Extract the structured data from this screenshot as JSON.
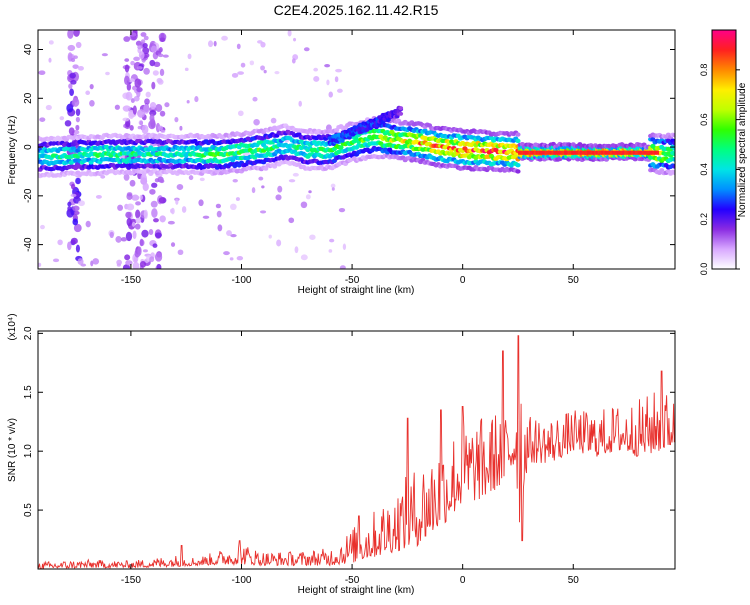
{
  "title": "C2E4.2025.162.11.42.R15",
  "colors": {
    "snr_line": "#e8302c",
    "axis": "#000000",
    "background": "#ffffff"
  },
  "colorbar": {
    "label": "Normalized spectral amplitude",
    "ticks": [
      "0.0",
      "0.2",
      "0.4",
      "0.6",
      "0.8"
    ],
    "range": [
      0.0,
      0.96
    ],
    "stops": [
      {
        "v": 0.0,
        "c": "#ffffff"
      },
      {
        "v": 0.08,
        "c": "#d8a8ff"
      },
      {
        "v": 0.16,
        "c": "#8a2be2"
      },
      {
        "v": 0.24,
        "c": "#2200ff"
      },
      {
        "v": 0.32,
        "c": "#0090ff"
      },
      {
        "v": 0.4,
        "c": "#00e5e5"
      },
      {
        "v": 0.48,
        "c": "#00ff80"
      },
      {
        "v": 0.56,
        "c": "#30ff00"
      },
      {
        "v": 0.64,
        "c": "#c0ff00"
      },
      {
        "v": 0.72,
        "c": "#ffee00"
      },
      {
        "v": 0.8,
        "c": "#ff8800"
      },
      {
        "v": 0.88,
        "c": "#ff2020"
      },
      {
        "v": 0.96,
        "c": "#ff0088"
      }
    ]
  },
  "chart_data": [
    {
      "type": "heatmap",
      "name": "spectrogram",
      "xlabel": "Height of straight line (km)",
      "ylabel": "Frequency (Hz)",
      "xlim": [
        -192,
        96
      ],
      "ylim": [
        -50,
        48
      ],
      "xticks": [
        -150,
        -100,
        -50,
        0,
        50
      ],
      "yticks": [
        -40,
        -20,
        0,
        20,
        40
      ],
      "ridge": {
        "x": [
          -192,
          -160,
          -130,
          -110,
          -90,
          -80,
          -70,
          -60,
          -50,
          -40,
          -30,
          -20,
          -10,
          0,
          20,
          40,
          60,
          80,
          96
        ],
        "freq_hz": [
          -4,
          -3,
          -3,
          -3,
          -1,
          1,
          -1,
          -1,
          2,
          4,
          3,
          2,
          0,
          -1,
          -2,
          -2,
          -2,
          -2,
          -3
        ],
        "amplitude": [
          0.45,
          0.5,
          0.45,
          0.55,
          0.55,
          0.45,
          0.5,
          0.55,
          0.55,
          0.6,
          0.7,
          0.8,
          0.85,
          0.85,
          0.88,
          0.92,
          0.92,
          0.9,
          0.55
        ]
      },
      "upper_branch": {
        "x": [
          -60,
          -55,
          -50,
          -45,
          -40,
          -35,
          -30,
          -28
        ],
        "freq_hz": [
          2,
          4,
          6,
          8,
          10,
          12,
          14,
          15
        ],
        "amplitude": [
          0.3,
          0.3,
          0.3,
          0.28,
          0.28,
          0.25,
          0.2,
          0.18
        ]
      },
      "vertical_streaks": {
        "x": [
          -176,
          -150,
          -145,
          -138
        ],
        "freq_range_hz": [
          -50,
          48
        ],
        "amplitude": [
          0.2,
          0.15,
          0.15,
          0.15
        ]
      }
    },
    {
      "type": "line",
      "name": "snr",
      "xlabel": "Height of straight line (km)",
      "ylabel": "SNR (10 * v/v)",
      "y_scale_label": "(x10⁴)",
      "xlim": [
        -192,
        96
      ],
      "ylim": [
        0,
        2.02
      ],
      "xticks": [
        -150,
        -100,
        -50,
        0,
        50
      ],
      "yticks": [
        0.5,
        1.0,
        1.5,
        2.0
      ],
      "ytick_labels": [
        "0.5",
        "1.0",
        "1.5",
        "2.0"
      ],
      "envelope": {
        "x": [
          -192,
          -170,
          -150,
          -130,
          -120,
          -100,
          -90,
          -75,
          -60,
          -50,
          -40,
          -30,
          -20,
          -10,
          0,
          10,
          20,
          24,
          26,
          28,
          30,
          40,
          50,
          60,
          70,
          80,
          90,
          96
        ],
        "low": [
          0.0,
          0.01,
          0.01,
          0.02,
          0.03,
          0.04,
          0.03,
          0.03,
          0.03,
          0.05,
          0.1,
          0.15,
          0.2,
          0.35,
          0.55,
          0.6,
          0.75,
          0.85,
          0.3,
          0.75,
          0.9,
          0.9,
          1.0,
          0.95,
          1.0,
          0.95,
          1.0,
          1.05
        ],
        "high": [
          0.06,
          0.08,
          0.07,
          0.12,
          0.1,
          0.22,
          0.15,
          0.15,
          0.18,
          0.35,
          0.5,
          0.7,
          0.9,
          1.1,
          1.25,
          1.3,
          1.4,
          1.55,
          1.95,
          1.45,
          1.3,
          1.3,
          1.35,
          1.35,
          1.4,
          1.45,
          1.55,
          1.45
        ]
      },
      "spikes": [
        {
          "x": -127,
          "y": 0.2
        },
        {
          "x": -101,
          "y": 0.24
        },
        {
          "x": -47,
          "y": 0.45
        },
        {
          "x": -25,
          "y": 1.28
        },
        {
          "x": -10,
          "y": 1.35
        },
        {
          "x": 0,
          "y": 1.38
        },
        {
          "x": 18,
          "y": 1.85
        },
        {
          "x": 25,
          "y": 1.98
        },
        {
          "x": 27,
          "y": 0.24
        },
        {
          "x": 90,
          "y": 1.68
        }
      ]
    }
  ]
}
